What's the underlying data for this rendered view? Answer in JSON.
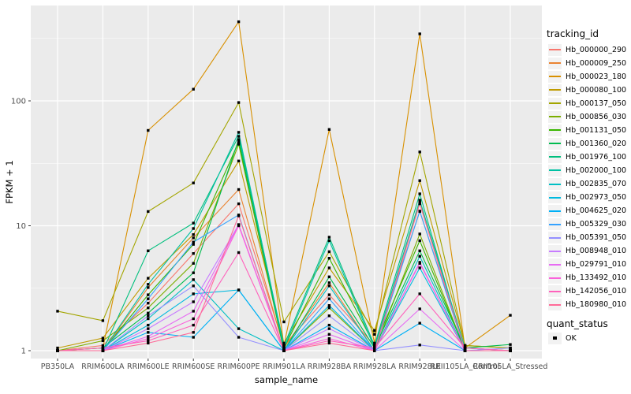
{
  "figure": {
    "bg": "#FFFFFF",
    "panel_bg": "#EBEBEB",
    "grid_color": "#FFFFFF",
    "tick_color": "#333333",
    "tick_label_color": "#4D4D4D",
    "title_color": "#000000",
    "point_color": "#000000"
  },
  "chart_data": {
    "type": "line",
    "title": "",
    "xlabel": "sample_name",
    "ylabel": "FPKM + 1",
    "y_scale": "log10",
    "y_ticks": [
      "1",
      "10",
      "100"
    ],
    "y_tick_values": [
      1,
      10,
      100
    ],
    "y_minor_values": [
      3.162,
      31.62,
      316.2
    ],
    "ylim": [
      0.89,
      580
    ],
    "grid": true,
    "legend_position": "right",
    "x_categories": [
      "PB350LA",
      "RRIM600LA",
      "RRIM600LE",
      "RRIM600SE",
      "RRIM600PE",
      "RRIM901LA",
      "RRIM928BA",
      "RRIM928LA",
      "RRIM928LE",
      "RRII105LA_Control",
      "RRII105LA_Stressed"
    ],
    "legend": {
      "title": "tracking_id"
    },
    "legend2": {
      "title": "quant_status",
      "items": [
        {
          "label": "OK"
        }
      ]
    },
    "series": [
      {
        "name": "Hb_000000_290",
        "color": "#F8766D",
        "values": [
          1.0,
          1.1,
          2.4,
          6.0,
          15.0,
          1.1,
          2.8,
          1.1,
          13.0,
          1.05,
          1.0
        ]
      },
      {
        "name": "Hb_000009_250",
        "color": "#EA8331",
        "values": [
          1.0,
          1.0,
          3.2,
          8.0,
          19.5,
          1.05,
          3.5,
          1.0,
          15.4,
          1.0,
          1.0
        ]
      },
      {
        "name": "Hb_000023_180",
        "color": "#D89000",
        "values": [
          1.0,
          1.05,
          58.0,
          124.0,
          430.0,
          1.1,
          59.0,
          1.15,
          344.0,
          1.05,
          1.92
        ]
      },
      {
        "name": "Hb_000080_100",
        "color": "#C09B00",
        "values": [
          1.05,
          1.26,
          3.8,
          8.5,
          33.0,
          1.15,
          4.6,
          1.45,
          23.0,
          1.1,
          1.05
        ]
      },
      {
        "name": "Hb_000137_050",
        "color": "#A3A500",
        "values": [
          2.07,
          1.74,
          13.0,
          22.0,
          97.0,
          1.7,
          6.2,
          1.35,
          39.0,
          1.1,
          1.05
        ]
      },
      {
        "name": "Hb_000856_030",
        "color": "#7CAE00",
        "values": [
          1.0,
          1.2,
          2.2,
          5.0,
          45.0,
          1.0,
          2.2,
          1.0,
          8.6,
          1.0,
          1.0
        ]
      },
      {
        "name": "Hb_001131_050",
        "color": "#39B600",
        "values": [
          1.0,
          1.0,
          2.8,
          7.1,
          47.0,
          1.05,
          5.5,
          1.1,
          7.6,
          1.0,
          1.0
        ]
      },
      {
        "name": "Hb_001360_020",
        "color": "#00BB4E",
        "values": [
          1.0,
          1.05,
          2.0,
          4.2,
          49.0,
          1.0,
          3.9,
          1.05,
          6.3,
          1.05,
          1.12
        ]
      },
      {
        "name": "Hb_001976_100",
        "color": "#00BF7D",
        "values": [
          1.0,
          1.0,
          6.3,
          10.5,
          52.0,
          1.1,
          8.1,
          1.1,
          18.0,
          1.0,
          1.0
        ]
      },
      {
        "name": "Hb_002000_100",
        "color": "#00C1A3",
        "values": [
          1.0,
          1.0,
          3.4,
          9.5,
          56.0,
          1.05,
          7.6,
          1.05,
          16.0,
          1.05,
          1.0
        ]
      },
      {
        "name": "Hb_002835_070",
        "color": "#00BFC4",
        "values": [
          1.0,
          1.0,
          1.8,
          3.7,
          1.5,
          1.0,
          3.3,
          1.0,
          5.7,
          1.0,
          1.0
        ]
      },
      {
        "name": "Hb_002973_050",
        "color": "#00BAE0",
        "values": [
          1.0,
          1.0,
          1.6,
          2.85,
          3.06,
          1.0,
          2.3,
          1.0,
          4.6,
          1.0,
          1.0
        ]
      },
      {
        "name": "Hb_004625_020",
        "color": "#00B0F6",
        "values": [
          1.0,
          1.0,
          1.4,
          1.28,
          3.06,
          1.0,
          1.6,
          1.0,
          1.66,
          1.0,
          1.0
        ]
      },
      {
        "name": "Hb_005329_030",
        "color": "#35A2FF",
        "values": [
          1.0,
          1.0,
          2.6,
          7.4,
          12.2,
          1.0,
          2.6,
          1.0,
          13.1,
          1.0,
          1.0
        ]
      },
      {
        "name": "Hb_005391_050",
        "color": "#9590FF",
        "values": [
          1.0,
          1.0,
          1.9,
          3.3,
          1.28,
          1.0,
          1.9,
          1.0,
          1.11,
          1.0,
          1.05
        ]
      },
      {
        "name": "Hb_008948_010",
        "color": "#C77CFF",
        "values": [
          1.0,
          1.0,
          1.5,
          2.46,
          10.2,
          1.0,
          1.5,
          1.0,
          5.1,
          1.0,
          1.0
        ]
      },
      {
        "name": "Hb_029791_010",
        "color": "#E76BF3",
        "values": [
          1.0,
          1.0,
          1.3,
          2.07,
          10.2,
          1.0,
          1.35,
          1.0,
          2.16,
          1.0,
          1.0
        ]
      },
      {
        "name": "Hb_133492_010",
        "color": "#FA62DB",
        "values": [
          1.0,
          1.0,
          1.25,
          1.8,
          10.0,
          1.0,
          1.25,
          1.0,
          5.0,
          1.0,
          1.0
        ]
      },
      {
        "name": "Hb_142056_010",
        "color": "#FF62BC",
        "values": [
          1.0,
          1.05,
          1.2,
          1.6,
          6.1,
          1.0,
          1.2,
          1.05,
          2.85,
          1.05,
          1.0
        ]
      },
      {
        "name": "Hb_180980_010",
        "color": "#FF6A98",
        "values": [
          1.0,
          1.0,
          1.15,
          1.4,
          12.0,
          1.0,
          1.15,
          1.0,
          15.0,
          1.0,
          1.0
        ]
      }
    ]
  }
}
